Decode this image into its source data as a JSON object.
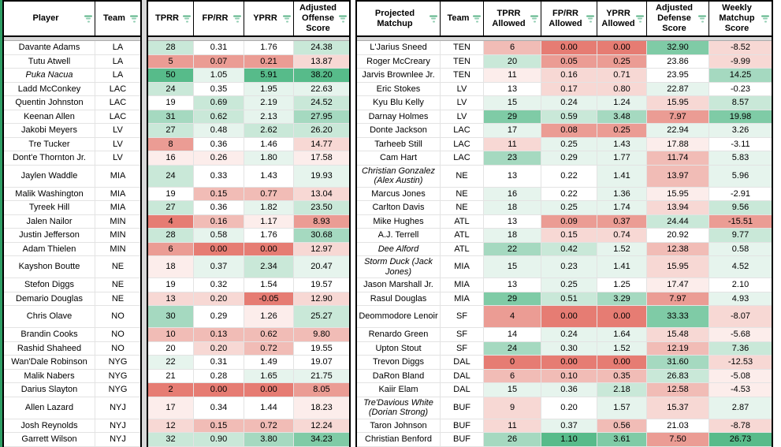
{
  "palette": {
    "g5": "#57bb8a",
    "g4": "#7fcba6",
    "g3": "#a5d9c0",
    "g2": "#c9e8d8",
    "g1": "#e6f4ed",
    "w": "#ffffff",
    "r1": "#fcedeb",
    "r2": "#f7d8d4",
    "r3": "#f1bcb6",
    "r4": "#eb9c94",
    "r5": "#e67c73"
  },
  "colors": {
    "table_border": "#000000",
    "grid_line": "#e3e3e3",
    "gutter_gray": "#d9d9d9",
    "accent_green_strip": "#2e9e64",
    "filter_icon_green": "#5cb488",
    "text": "#000000"
  },
  "left_table": {
    "name_headers": [
      "Player",
      "Team"
    ],
    "stat_headers": [
      "TPRR",
      "FP/RR",
      "YPRR",
      "Adjusted Offense Score"
    ],
    "rows": [
      {
        "player": "Davante Adams",
        "team": "LA",
        "italic": false,
        "tall": false,
        "values": [
          "28",
          "0.31",
          "1.76",
          "24.38"
        ],
        "colors": [
          "g2",
          "w",
          "w",
          "g2"
        ]
      },
      {
        "player": "Tutu Atwell",
        "team": "LA",
        "italic": false,
        "tall": false,
        "values": [
          "5",
          "0.07",
          "0.21",
          "13.87"
        ],
        "colors": [
          "r4",
          "r4",
          "r4",
          "r2"
        ]
      },
      {
        "player": "Puka Nacua",
        "team": "LA",
        "italic": true,
        "tall": false,
        "values": [
          "50",
          "1.05",
          "5.91",
          "38.20"
        ],
        "colors": [
          "g5",
          "g1",
          "g5",
          "g5"
        ]
      },
      {
        "player": "Ladd McConkey",
        "team": "LAC",
        "italic": false,
        "tall": false,
        "values": [
          "24",
          "0.35",
          "1.95",
          "22.63"
        ],
        "colors": [
          "g2",
          "w",
          "g1",
          "g1"
        ]
      },
      {
        "player": "Quentin Johnston",
        "team": "LAC",
        "italic": false,
        "tall": false,
        "values": [
          "19",
          "0.69",
          "2.19",
          "24.52"
        ],
        "colors": [
          "w",
          "g2",
          "g1",
          "g2"
        ]
      },
      {
        "player": "Keenan Allen",
        "team": "LAC",
        "italic": false,
        "tall": false,
        "values": [
          "31",
          "0.62",
          "2.13",
          "27.95"
        ],
        "colors": [
          "g3",
          "g2",
          "g1",
          "g3"
        ]
      },
      {
        "player": "Jakobi Meyers",
        "team": "LV",
        "italic": false,
        "tall": false,
        "values": [
          "27",
          "0.48",
          "2.62",
          "26.20"
        ],
        "colors": [
          "g2",
          "g1",
          "g2",
          "g2"
        ]
      },
      {
        "player": "Tre Tucker",
        "team": "LV",
        "italic": false,
        "tall": false,
        "values": [
          "8",
          "0.36",
          "1.46",
          "14.77"
        ],
        "colors": [
          "r4",
          "w",
          "w",
          "r2"
        ]
      },
      {
        "player": "Dont'e Thornton Jr.",
        "team": "LV",
        "italic": false,
        "tall": false,
        "values": [
          "16",
          "0.26",
          "1.80",
          "17.58"
        ],
        "colors": [
          "r1",
          "r1",
          "g1",
          "r1"
        ]
      },
      {
        "player": "Jaylen Waddle",
        "team": "MIA",
        "italic": false,
        "tall": true,
        "values": [
          "24",
          "0.33",
          "1.43",
          "19.93"
        ],
        "colors": [
          "g2",
          "w",
          "w",
          "g1"
        ]
      },
      {
        "player": "Malik Washington",
        "team": "MIA",
        "italic": false,
        "tall": false,
        "values": [
          "19",
          "0.15",
          "0.77",
          "13.04"
        ],
        "colors": [
          "w",
          "r3",
          "r3",
          "r2"
        ]
      },
      {
        "player": "Tyreek Hill",
        "team": "MIA",
        "italic": false,
        "tall": false,
        "values": [
          "27",
          "0.36",
          "1.82",
          "23.50"
        ],
        "colors": [
          "g2",
          "w",
          "g1",
          "g2"
        ]
      },
      {
        "player": "Jalen Nailor",
        "team": "MIN",
        "italic": false,
        "tall": false,
        "values": [
          "4",
          "0.16",
          "1.17",
          "8.93"
        ],
        "colors": [
          "r5",
          "r3",
          "r1",
          "r4"
        ]
      },
      {
        "player": "Justin Jefferson",
        "team": "MIN",
        "italic": false,
        "tall": false,
        "values": [
          "28",
          "0.58",
          "1.76",
          "30.68"
        ],
        "colors": [
          "g2",
          "g1",
          "w",
          "g3"
        ]
      },
      {
        "player": "Adam Thielen",
        "team": "MIN",
        "italic": false,
        "tall": false,
        "values": [
          "6",
          "0.00",
          "0.00",
          "12.97"
        ],
        "colors": [
          "r4",
          "r5",
          "r5",
          "r2"
        ]
      },
      {
        "player": "Kayshon Boutte",
        "team": "NE",
        "italic": false,
        "tall": true,
        "values": [
          "18",
          "0.37",
          "2.34",
          "20.47"
        ],
        "colors": [
          "r1",
          "g1",
          "g2",
          "g1"
        ]
      },
      {
        "player": "Stefon Diggs",
        "team": "NE",
        "italic": false,
        "tall": false,
        "values": [
          "19",
          "0.32",
          "1.54",
          "19.57"
        ],
        "colors": [
          "w",
          "w",
          "w",
          "w"
        ]
      },
      {
        "player": "Demario Douglas",
        "team": "NE",
        "italic": false,
        "tall": false,
        "values": [
          "13",
          "0.20",
          "-0.05",
          "12.90"
        ],
        "colors": [
          "r2",
          "r2",
          "r5",
          "r2"
        ]
      },
      {
        "player": "Chris Olave",
        "team": "NO",
        "italic": false,
        "tall": true,
        "values": [
          "30",
          "0.29",
          "1.26",
          "25.27"
        ],
        "colors": [
          "g3",
          "w",
          "r1",
          "g2"
        ]
      },
      {
        "player": "Brandin Cooks",
        "team": "NO",
        "italic": false,
        "tall": false,
        "values": [
          "10",
          "0.13",
          "0.62",
          "9.80"
        ],
        "colors": [
          "r3",
          "r3",
          "r3",
          "r3"
        ]
      },
      {
        "player": "Rashid Shaheed",
        "team": "NO",
        "italic": false,
        "tall": false,
        "values": [
          "20",
          "0.20",
          "0.72",
          "19.55"
        ],
        "colors": [
          "w",
          "r2",
          "r3",
          "w"
        ]
      },
      {
        "player": "Wan'Dale Robinson",
        "team": "NYG",
        "italic": false,
        "tall": false,
        "values": [
          "22",
          "0.31",
          "1.49",
          "19.07"
        ],
        "colors": [
          "g1",
          "w",
          "w",
          "w"
        ]
      },
      {
        "player": "Malik Nabers",
        "team": "NYG",
        "italic": false,
        "tall": false,
        "values": [
          "21",
          "0.28",
          "1.65",
          "21.75"
        ],
        "colors": [
          "w",
          "w",
          "g1",
          "g1"
        ]
      },
      {
        "player": "Darius Slayton",
        "team": "NYG",
        "italic": false,
        "tall": false,
        "values": [
          "2",
          "0.00",
          "0.00",
          "8.05"
        ],
        "colors": [
          "r5",
          "r5",
          "r5",
          "r4"
        ]
      },
      {
        "player": "Allen Lazard",
        "team": "NYJ",
        "italic": false,
        "tall": true,
        "values": [
          "17",
          "0.34",
          "1.44",
          "18.23"
        ],
        "colors": [
          "r1",
          "w",
          "w",
          "r1"
        ]
      },
      {
        "player": "Josh Reynolds",
        "team": "NYJ",
        "italic": false,
        "tall": false,
        "values": [
          "12",
          "0.15",
          "0.72",
          "12.24"
        ],
        "colors": [
          "r2",
          "r3",
          "r3",
          "r2"
        ]
      },
      {
        "player": "Garrett Wilson",
        "team": "NYJ",
        "italic": false,
        "tall": false,
        "values": [
          "32",
          "0.90",
          "3.80",
          "34.23"
        ],
        "colors": [
          "g2",
          "g2",
          "g3",
          "g4"
        ]
      }
    ]
  },
  "right_table": {
    "headers": [
      "Projected Matchup",
      "Team",
      "TPRR Allowed",
      "FP/RR Allowed",
      "YPRR Allowed",
      "Adjusted Defense Score",
      "Weekly Matchup Score"
    ],
    "rows": [
      {
        "player": "L'Jarius Sneed",
        "team": "TEN",
        "italic": false,
        "tall": false,
        "values": [
          "6",
          "0.00",
          "0.00",
          "32.90",
          "-8.52"
        ],
        "colors": [
          "r3",
          "r5",
          "r5",
          "g4",
          "r2"
        ]
      },
      {
        "player": "Roger McCreary",
        "team": "TEN",
        "italic": false,
        "tall": false,
        "values": [
          "20",
          "0.05",
          "0.25",
          "23.86",
          "-9.99"
        ],
        "colors": [
          "g2",
          "r4",
          "r4",
          "w",
          "r2"
        ]
      },
      {
        "player": "Jarvis Brownlee Jr.",
        "team": "TEN",
        "italic": false,
        "tall": false,
        "values": [
          "11",
          "0.16",
          "0.71",
          "23.95",
          "14.25"
        ],
        "colors": [
          "r1",
          "r2",
          "r2",
          "w",
          "g3"
        ]
      },
      {
        "player": "Eric Stokes",
        "team": "LV",
        "italic": false,
        "tall": false,
        "values": [
          "13",
          "0.17",
          "0.80",
          "22.87",
          "-0.23"
        ],
        "colors": [
          "w",
          "r2",
          "r2",
          "g1",
          "w"
        ]
      },
      {
        "player": "Kyu Blu Kelly",
        "team": "LV",
        "italic": false,
        "tall": false,
        "values": [
          "15",
          "0.24",
          "1.24",
          "15.95",
          "8.57"
        ],
        "colors": [
          "g1",
          "g1",
          "g1",
          "r2",
          "g2"
        ]
      },
      {
        "player": "Darnay Holmes",
        "team": "LV",
        "italic": false,
        "tall": false,
        "values": [
          "29",
          "0.59",
          "3.48",
          "7.97",
          "19.98"
        ],
        "colors": [
          "g4",
          "g2",
          "g3",
          "r4",
          "g4"
        ]
      },
      {
        "player": "Donte Jackson",
        "team": "LAC",
        "italic": false,
        "tall": false,
        "values": [
          "17",
          "0.08",
          "0.25",
          "22.94",
          "3.26"
        ],
        "colors": [
          "g1",
          "r4",
          "r4",
          "g1",
          "g1"
        ]
      },
      {
        "player": "Tarheeb Still",
        "team": "LAC",
        "italic": false,
        "tall": false,
        "values": [
          "11",
          "0.25",
          "1.43",
          "17.88",
          "-3.11"
        ],
        "colors": [
          "r2",
          "g1",
          "g1",
          "r1",
          "w"
        ]
      },
      {
        "player": "Cam Hart",
        "team": "LAC",
        "italic": false,
        "tall": false,
        "values": [
          "23",
          "0.29",
          "1.77",
          "11.74",
          "5.83"
        ],
        "colors": [
          "g3",
          "g1",
          "g1",
          "r3",
          "g1"
        ]
      },
      {
        "player": "Christian Gonzalez (Alex Austin)",
        "team": "NE",
        "italic": true,
        "tall": true,
        "values": [
          "13",
          "0.22",
          "1.41",
          "13.97",
          "5.96"
        ],
        "colors": [
          "w",
          "w",
          "g1",
          "r3",
          "g1"
        ]
      },
      {
        "player": "Marcus Jones",
        "team": "NE",
        "italic": false,
        "tall": false,
        "values": [
          "16",
          "0.22",
          "1.36",
          "15.95",
          "-2.91"
        ],
        "colors": [
          "g1",
          "w",
          "g1",
          "r1",
          "w"
        ]
      },
      {
        "player": "Carlton Davis",
        "team": "NE",
        "italic": false,
        "tall": false,
        "values": [
          "18",
          "0.25",
          "1.74",
          "13.94",
          "9.56"
        ],
        "colors": [
          "g1",
          "g1",
          "g1",
          "r2",
          "g2"
        ]
      },
      {
        "player": "Mike Hughes",
        "team": "ATL",
        "italic": false,
        "tall": false,
        "values": [
          "13",
          "0.09",
          "0.37",
          "24.44",
          "-15.51"
        ],
        "colors": [
          "w",
          "r4",
          "r4",
          "g2",
          "r4"
        ]
      },
      {
        "player": "A.J. Terrell",
        "team": "ATL",
        "italic": false,
        "tall": false,
        "values": [
          "18",
          "0.15",
          "0.74",
          "20.92",
          "9.77"
        ],
        "colors": [
          "g1",
          "r2",
          "r2",
          "w",
          "g2"
        ]
      },
      {
        "player": "Dee Alford",
        "team": "ATL",
        "italic": true,
        "tall": false,
        "values": [
          "22",
          "0.42",
          "1.52",
          "12.38",
          "0.58"
        ],
        "colors": [
          "g3",
          "g2",
          "g1",
          "r3",
          "g1"
        ]
      },
      {
        "player": "Storm Duck (Jack Jones)",
        "team": "MIA",
        "italic": true,
        "tall": true,
        "values": [
          "15",
          "0.23",
          "1.41",
          "15.95",
          "4.52"
        ],
        "colors": [
          "g1",
          "g1",
          "g1",
          "r2",
          "g1"
        ]
      },
      {
        "player": "Jason Marshall Jr.",
        "team": "MIA",
        "italic": false,
        "tall": false,
        "values": [
          "13",
          "0.25",
          "1.25",
          "17.47",
          "2.10"
        ],
        "colors": [
          "w",
          "g1",
          "w",
          "r1",
          "w"
        ]
      },
      {
        "player": "Rasul Douglas",
        "team": "MIA",
        "italic": false,
        "tall": false,
        "values": [
          "29",
          "0.51",
          "3.29",
          "7.97",
          "4.93"
        ],
        "colors": [
          "g4",
          "g2",
          "g3",
          "r4",
          "g1"
        ]
      },
      {
        "player": "Deommodore Lenoir",
        "team": "SF",
        "italic": false,
        "tall": true,
        "values": [
          "4",
          "0.00",
          "0.00",
          "33.33",
          "-8.07"
        ],
        "colors": [
          "r4",
          "r5",
          "r5",
          "g4",
          "r2"
        ]
      },
      {
        "player": "Renardo Green",
        "team": "SF",
        "italic": false,
        "tall": false,
        "values": [
          "14",
          "0.24",
          "1.64",
          "15.48",
          "-5.68"
        ],
        "colors": [
          "w",
          "g1",
          "g1",
          "r2",
          "r1"
        ]
      },
      {
        "player": "Upton Stout",
        "team": "SF",
        "italic": false,
        "tall": false,
        "values": [
          "24",
          "0.30",
          "1.52",
          "12.19",
          "7.36"
        ],
        "colors": [
          "g3",
          "g1",
          "g1",
          "r3",
          "g2"
        ]
      },
      {
        "player": "Trevon Diggs",
        "team": "DAL",
        "italic": false,
        "tall": false,
        "values": [
          "0",
          "0.00",
          "0.00",
          "31.60",
          "-12.53"
        ],
        "colors": [
          "r5",
          "r5",
          "r5",
          "g3",
          "r2"
        ]
      },
      {
        "player": "DaRon Bland",
        "team": "DAL",
        "italic": false,
        "tall": false,
        "values": [
          "6",
          "0.10",
          "0.35",
          "26.83",
          "-5.08"
        ],
        "colors": [
          "r3",
          "r3",
          "r3",
          "g2",
          "r1"
        ]
      },
      {
        "player": "Kaiir Elam",
        "team": "DAL",
        "italic": false,
        "tall": false,
        "values": [
          "15",
          "0.36",
          "2.18",
          "12.58",
          "-4.53"
        ],
        "colors": [
          "g1",
          "g1",
          "g2",
          "r3",
          "r1"
        ]
      },
      {
        "player": "Tre'Davious White (Dorian Strong)",
        "team": "BUF",
        "italic": true,
        "tall": true,
        "values": [
          "9",
          "0.20",
          "1.57",
          "15.37",
          "2.87"
        ],
        "colors": [
          "r2",
          "w",
          "g1",
          "r2",
          "g1"
        ]
      },
      {
        "player": "Taron Johnson",
        "team": "BUF",
        "italic": false,
        "tall": false,
        "values": [
          "11",
          "0.37",
          "0.56",
          "21.03",
          "-8.78"
        ],
        "colors": [
          "r2",
          "g1",
          "r3",
          "w",
          "r2"
        ]
      },
      {
        "player": "Christian Benford",
        "team": "BUF",
        "italic": false,
        "tall": false,
        "values": [
          "26",
          "1.10",
          "3.61",
          "7.50",
          "26.73"
        ],
        "colors": [
          "g3",
          "g5",
          "g4",
          "r4",
          "g5"
        ]
      }
    ]
  }
}
